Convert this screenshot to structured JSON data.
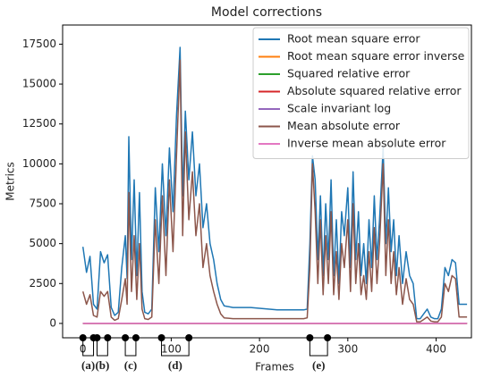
{
  "chart_data": {
    "type": "line",
    "title": "Model corrections",
    "xlabel": "Frames",
    "ylabel": "Metrics",
    "x": [
      0,
      4,
      8,
      12,
      16,
      20,
      24,
      28,
      32,
      36,
      40,
      44,
      48,
      50,
      52,
      55,
      58,
      61,
      64,
      67,
      70,
      74,
      78,
      82,
      86,
      90,
      94,
      98,
      102,
      106,
      110,
      113,
      116,
      120,
      124,
      128,
      132,
      136,
      140,
      144,
      148,
      152,
      156,
      160,
      170,
      180,
      190,
      200,
      210,
      220,
      230,
      240,
      250,
      254,
      257,
      260,
      263,
      266,
      269,
      272,
      275,
      278,
      281,
      284,
      287,
      290,
      293,
      296,
      300,
      303,
      306,
      309,
      312,
      315,
      318,
      321,
      324,
      327,
      330,
      333,
      336,
      340,
      343,
      346,
      349,
      352,
      355,
      358,
      362,
      366,
      370,
      374,
      378,
      382,
      386,
      390,
      394,
      398,
      402,
      406,
      410,
      414,
      418,
      422,
      426,
      430,
      435
    ],
    "series": [
      {
        "name": "Root mean square error",
        "color": "#1f77b4",
        "values": [
          4800,
          3200,
          4200,
          1200,
          900,
          4500,
          3800,
          4300,
          1000,
          500,
          700,
          3500,
          5500,
          2800,
          11700,
          4000,
          9000,
          3000,
          8200,
          2000,
          700,
          600,
          900,
          8500,
          4500,
          10000,
          5500,
          11000,
          7000,
          13000,
          17300,
          8000,
          13300,
          9000,
          12000,
          8000,
          10000,
          6000,
          7500,
          5000,
          4000,
          2500,
          1500,
          1100,
          1000,
          1000,
          1000,
          950,
          900,
          850,
          850,
          850,
          850,
          900,
          5000,
          10500,
          9000,
          4000,
          8000,
          3000,
          7500,
          4000,
          9000,
          3000,
          6500,
          2500,
          7000,
          5500,
          8500,
          3500,
          9500,
          4000,
          7000,
          3000,
          5000,
          2500,
          6500,
          3500,
          8000,
          4000,
          6500,
          11000,
          5000,
          8500,
          4500,
          6500,
          3000,
          5500,
          2500,
          4500,
          3000,
          2500,
          300,
          300,
          600,
          900,
          400,
          300,
          300,
          900,
          3500,
          3000,
          4000,
          3800,
          1200,
          1200,
          1200
        ]
      },
      {
        "name": "Root mean square error inverse",
        "color": "#ff7f0e",
        "x": [
          0,
          435
        ],
        "values": [
          0,
          0
        ]
      },
      {
        "name": "Squared relative error",
        "color": "#2ca02c",
        "x": [
          0,
          435
        ],
        "values": [
          0,
          0
        ]
      },
      {
        "name": "Absolute squared relative error",
        "color": "#d62728",
        "x": [
          0,
          435
        ],
        "values": [
          0,
          0
        ]
      },
      {
        "name": "Scale invariant log",
        "color": "#9467bd",
        "x": [
          0,
          435
        ],
        "values": [
          0,
          0
        ]
      },
      {
        "name": "Mean absolute error",
        "color": "#8c564b",
        "values": [
          2000,
          1200,
          1800,
          500,
          400,
          2000,
          1700,
          2000,
          400,
          200,
          300,
          1500,
          2800,
          1200,
          8200,
          2000,
          5500,
          1500,
          5000,
          900,
          300,
          250,
          400,
          6500,
          2500,
          8000,
          3000,
          9000,
          4500,
          10500,
          16500,
          5500,
          12000,
          6500,
          9500,
          5500,
          7500,
          3500,
          5000,
          3000,
          2000,
          1200,
          600,
          350,
          300,
          300,
          300,
          300,
          300,
          300,
          300,
          300,
          300,
          350,
          3500,
          10000,
          7000,
          2500,
          6500,
          1800,
          5500,
          2500,
          7000,
          1800,
          4500,
          1500,
          5000,
          3500,
          6500,
          2000,
          7500,
          2500,
          5000,
          1800,
          3000,
          1500,
          4500,
          2000,
          6000,
          2500,
          5000,
          10000,
          3000,
          6500,
          2500,
          4500,
          1800,
          3500,
          1200,
          2800,
          1500,
          1200,
          100,
          100,
          250,
          400,
          150,
          100,
          100,
          400,
          2500,
          2000,
          3000,
          2800,
          400,
          400,
          400
        ]
      },
      {
        "name": "Inverse mean absolute error",
        "color": "#e377c2",
        "x": [
          0,
          435
        ],
        "values": [
          0,
          0
        ]
      }
    ],
    "xlim": [
      -23,
      440
    ],
    "ylim": [
      -900,
      18700
    ],
    "xticks": [
      0,
      100,
      200,
      300,
      400
    ],
    "yticks": [
      0,
      2500,
      5000,
      7500,
      10000,
      12500,
      15000,
      17500
    ],
    "legend": "upper right",
    "annotations": [
      {
        "label": "(a)",
        "frames": [
          0,
          12
        ]
      },
      {
        "label": "(b)",
        "frames": [
          16,
          28
        ]
      },
      {
        "label": "(c)",
        "frames": [
          48,
          60
        ]
      },
      {
        "label": "(d)",
        "frames": [
          89,
          120
        ]
      },
      {
        "label": "(e)",
        "frames": [
          257,
          277
        ]
      }
    ]
  }
}
